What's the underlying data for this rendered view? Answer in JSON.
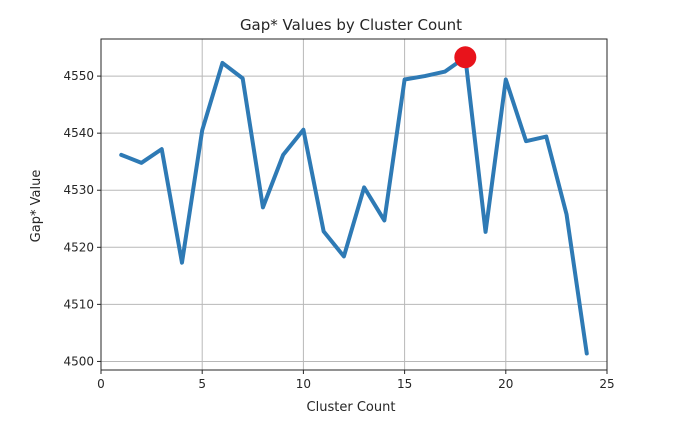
{
  "chart_data": {
    "type": "line",
    "title": "Gap* Values by Cluster Count",
    "xlabel": "Cluster Count",
    "ylabel": "Gap* Value",
    "xlim": [
      0,
      25
    ],
    "ylim": [
      4498.5,
      4556.5
    ],
    "xticks": [
      0,
      5,
      10,
      15,
      20,
      25
    ],
    "yticks": [
      4500,
      4510,
      4520,
      4530,
      4540,
      4550
    ],
    "grid": true,
    "series": [
      {
        "name": "Gap*",
        "color": "#2e7ab5",
        "x": [
          1,
          2,
          3,
          4,
          5,
          6,
          7,
          8,
          9,
          10,
          11,
          12,
          13,
          14,
          15,
          16,
          17,
          18,
          19,
          20,
          21,
          22,
          23,
          24
        ],
        "values": [
          4536.2,
          4534.8,
          4537.2,
          4517.3,
          4540.5,
          4552.3,
          4549.6,
          4527.0,
          4536.2,
          4540.6,
          4522.8,
          4518.4,
          4530.5,
          4524.7,
          4549.4,
          4550.0,
          4550.8,
          4553.3,
          4522.7,
          4549.4,
          4538.6,
          4539.4,
          4525.8,
          4501.4
        ]
      }
    ],
    "highlight": {
      "x": 18,
      "y": 4553.3,
      "color": "#e8131b"
    }
  }
}
